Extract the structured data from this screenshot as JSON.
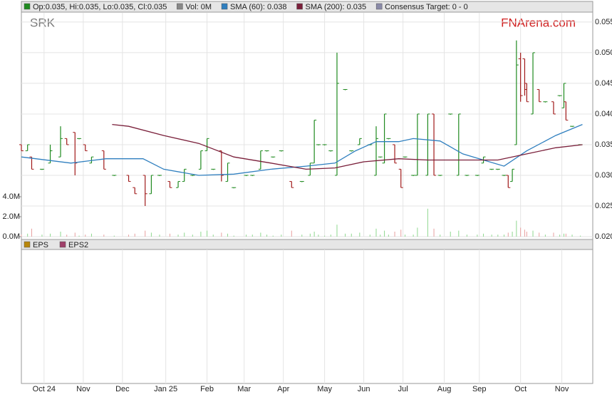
{
  "chart_data": {
    "type": "ohlc",
    "title": "SRK",
    "watermark": "FNArena.com",
    "legend": [
      {
        "label": "Op:0.035, Hi:0.035, Lo:0.035, Cl:0.035",
        "color": "#1f8a1f"
      },
      {
        "label": "Vol: 0M",
        "color": "#888888"
      },
      {
        "label": "SMA (60): 0.038",
        "color": "#2f7fbf"
      },
      {
        "label": "SMA (200): 0.035",
        "color": "#7a1f3a"
      },
      {
        "label": "Consensus Target: 0 - 0",
        "color": "#8a8aa8"
      }
    ],
    "up_color": "#1f8a1f",
    "down_color": "#a01818",
    "xlim": [
      0,
      277
    ],
    "xticks": [
      {
        "value": 11,
        "label": "Oct 24"
      },
      {
        "value": 30,
        "label": "Nov"
      },
      {
        "value": 49,
        "label": "Dec"
      },
      {
        "value": 70,
        "label": "Jan 25"
      },
      {
        "value": 90,
        "label": "Feb"
      },
      {
        "value": 108,
        "label": "Mar"
      },
      {
        "value": 127,
        "label": "Apr"
      },
      {
        "value": 147,
        "label": "May"
      },
      {
        "value": 166,
        "label": "Jun"
      },
      {
        "value": 185,
        "label": "Jul"
      },
      {
        "value": 205,
        "label": "Aug"
      },
      {
        "value": 222,
        "label": "Sep"
      },
      {
        "value": 242,
        "label": "Oct"
      },
      {
        "value": 262,
        "label": "Nov"
      }
    ],
    "ylim": [
      0.02,
      0.0565
    ],
    "yticks": [
      {
        "value": 0.02,
        "label": "0.020"
      },
      0.025,
      {
        "value": 0.03,
        "label": "0.030"
      },
      0.035,
      {
        "value": 0.04,
        "label": "0.040"
      },
      0.045,
      {
        "value": 0.05,
        "label": "0.050"
      },
      0.055
    ],
    "grid": true,
    "x": [
      0,
      3,
      5,
      10,
      14,
      19,
      22,
      26,
      28,
      31,
      34,
      40,
      45,
      52,
      55,
      60,
      63,
      67,
      72,
      76,
      79,
      83,
      87,
      90,
      93,
      97,
      100,
      103,
      109,
      112,
      116,
      119,
      122,
      126,
      131,
      136,
      140,
      142,
      144,
      147,
      150,
      153,
      157,
      160,
      164,
      169,
      172,
      174,
      176,
      178,
      181,
      184,
      186,
      190,
      192,
      197,
      200,
      203,
      208,
      212,
      216,
      221,
      224,
      228,
      231,
      234,
      236,
      238,
      240,
      242,
      244,
      245,
      248,
      251,
      254,
      258,
      261,
      263,
      264,
      267,
      271
    ],
    "open": [
      0.035,
      0.034,
      0.033,
      0.031,
      0.032,
      0.033,
      0.036,
      0.037,
      0.036,
      0.035,
      0.032,
      0.034,
      0.03,
      0.03,
      0.028,
      0.03,
      0.027,
      0.03,
      0.029,
      0.028,
      0.029,
      0.03,
      0.031,
      0.034,
      0.031,
      0.034,
      0.029,
      0.028,
      0.03,
      0.03,
      0.031,
      0.034,
      0.033,
      0.034,
      0.029,
      0.029,
      0.03,
      0.032,
      0.035,
      0.035,
      0.034,
      0.03,
      0.044,
      0.034,
      0.035,
      0.035,
      0.03,
      0.033,
      0.032,
      0.036,
      0.035,
      0.031,
      0.033,
      0.03,
      0.03,
      0.03,
      0.04,
      0.03,
      0.04,
      0.03,
      0.03,
      0.03,
      0.032,
      0.031,
      0.031,
      0.03,
      0.03,
      0.029,
      0.035,
      0.049,
      0.049,
      0.045,
      0.04,
      0.044,
      0.042,
      0.042,
      0.043,
      0.041,
      0.042,
      0.038,
      0.035
    ],
    "high": [
      0.035,
      0.035,
      0.033,
      0.031,
      0.035,
      0.038,
      0.036,
      0.037,
      0.036,
      0.035,
      0.033,
      0.034,
      0.03,
      0.03,
      0.028,
      0.03,
      0.03,
      0.03,
      0.029,
      0.029,
      0.031,
      0.03,
      0.034,
      0.036,
      0.031,
      0.034,
      0.032,
      0.028,
      0.03,
      0.03,
      0.034,
      0.034,
      0.033,
      0.034,
      0.029,
      0.029,
      0.032,
      0.039,
      0.035,
      0.035,
      0.034,
      0.05,
      0.044,
      0.034,
      0.036,
      0.035,
      0.038,
      0.033,
      0.04,
      0.036,
      0.035,
      0.031,
      0.033,
      0.03,
      0.04,
      0.04,
      0.04,
      0.03,
      0.04,
      0.04,
      0.03,
      0.03,
      0.033,
      0.031,
      0.031,
      0.03,
      0.03,
      0.031,
      0.052,
      0.05,
      0.049,
      0.045,
      0.05,
      0.044,
      0.042,
      0.042,
      0.043,
      0.045,
      0.042,
      0.038,
      0.035
    ],
    "low": [
      0.034,
      0.034,
      0.031,
      0.031,
      0.032,
      0.033,
      0.035,
      0.03,
      0.036,
      0.034,
      0.032,
      0.031,
      0.03,
      0.029,
      0.027,
      0.025,
      0.027,
      0.03,
      0.028,
      0.028,
      0.029,
      0.03,
      0.031,
      0.034,
      0.031,
      0.029,
      0.029,
      0.028,
      0.03,
      0.03,
      0.031,
      0.034,
      0.033,
      0.034,
      0.028,
      0.029,
      0.03,
      0.032,
      0.035,
      0.035,
      0.034,
      0.03,
      0.044,
      0.034,
      0.035,
      0.035,
      0.03,
      0.033,
      0.032,
      0.036,
      0.032,
      0.028,
      0.033,
      0.03,
      0.03,
      0.03,
      0.03,
      0.03,
      0.04,
      0.03,
      0.03,
      0.03,
      0.032,
      0.031,
      0.031,
      0.03,
      0.028,
      0.029,
      0.035,
      0.042,
      0.043,
      0.042,
      0.04,
      0.042,
      0.042,
      0.04,
      0.043,
      0.041,
      0.039,
      0.038,
      0.035
    ],
    "close": [
      0.034,
      0.035,
      0.031,
      0.031,
      0.034,
      0.036,
      0.035,
      0.032,
      0.036,
      0.034,
      0.033,
      0.031,
      0.03,
      0.029,
      0.027,
      0.027,
      0.03,
      0.03,
      0.028,
      0.029,
      0.031,
      0.03,
      0.034,
      0.036,
      0.031,
      0.03,
      0.032,
      0.028,
      0.03,
      0.03,
      0.034,
      0.034,
      0.033,
      0.034,
      0.028,
      0.029,
      0.032,
      0.039,
      0.035,
      0.035,
      0.034,
      0.045,
      0.044,
      0.034,
      0.036,
      0.035,
      0.036,
      0.033,
      0.04,
      0.036,
      0.032,
      0.028,
      0.033,
      0.03,
      0.04,
      0.04,
      0.03,
      0.03,
      0.04,
      0.04,
      0.03,
      0.03,
      0.033,
      0.031,
      0.031,
      0.03,
      0.028,
      0.031,
      0.048,
      0.043,
      0.044,
      0.042,
      0.05,
      0.042,
      0.042,
      0.04,
      0.043,
      0.045,
      0.039,
      0.038,
      0.035
    ],
    "volume": [
      0.2,
      0.3,
      0.8,
      0.2,
      0.3,
      0.5,
      0.2,
      0.4,
      0.1,
      0.2,
      0.3,
      0.2,
      0.1,
      0.2,
      0.3,
      0.6,
      0.4,
      0.2,
      0.3,
      0.2,
      0.4,
      0.2,
      0.5,
      0.6,
      0.2,
      0.4,
      0.3,
      0.1,
      0.2,
      0.2,
      0.4,
      0.2,
      0.1,
      0.2,
      0.6,
      0.2,
      0.3,
      0.5,
      0.2,
      0.1,
      0.2,
      1.2,
      0.3,
      0.3,
      0.4,
      0.2,
      0.8,
      0.2,
      0.6,
      0.2,
      0.5,
      0.7,
      0.2,
      0.2,
      0.9,
      2.8,
      0.8,
      0.2,
      0.5,
      0.6,
      0.2,
      0.2,
      0.3,
      0.2,
      0.2,
      0.2,
      0.4,
      0.5,
      1.6,
      0.9,
      0.7,
      0.5,
      0.6,
      0.4,
      0.2,
      0.4,
      0.2,
      0.3,
      0.3,
      0.2,
      0.1
    ],
    "volume_up_color": "#8fd88f",
    "volume_down_color": "#e8a0a0",
    "volume_ylim": [
      0,
      4
    ],
    "volume_ticks": [
      {
        "value": 0,
        "label": "0.0M"
      },
      {
        "value": 2,
        "label": "2.0M"
      },
      {
        "value": 4,
        "label": "4.0M"
      }
    ],
    "lines": [
      {
        "name": "SMA (60)",
        "color": "#2f7fbf",
        "x": [
          0,
          24,
          41,
          59,
          69,
          86,
          103,
          121,
          138,
          152,
          162,
          172,
          183,
          190,
          203,
          214,
          224,
          234,
          245,
          259,
          272
        ],
        "values": [
          0.033,
          0.032,
          0.0327,
          0.0327,
          0.031,
          0.03,
          0.0302,
          0.031,
          0.0315,
          0.032,
          0.034,
          0.0355,
          0.0355,
          0.036,
          0.0356,
          0.0335,
          0.0325,
          0.0315,
          0.034,
          0.0365,
          0.0383
        ]
      },
      {
        "name": "SMA (200)",
        "color": "#7a1f3a",
        "x": [
          44,
          52,
          69,
          86,
          103,
          121,
          138,
          152,
          166,
          183,
          197,
          231,
          245,
          259,
          272
        ],
        "values": [
          0.0383,
          0.038,
          0.0365,
          0.0352,
          0.033,
          0.032,
          0.031,
          0.0312,
          0.0322,
          0.0327,
          0.0325,
          0.0325,
          0.0335,
          0.0345,
          0.035
        ]
      }
    ],
    "lower_panel": {
      "legend": [
        {
          "label": "EPS",
          "color": "#b8860b"
        },
        {
          "label": "EPS2",
          "color": "#a0406a"
        }
      ]
    }
  }
}
